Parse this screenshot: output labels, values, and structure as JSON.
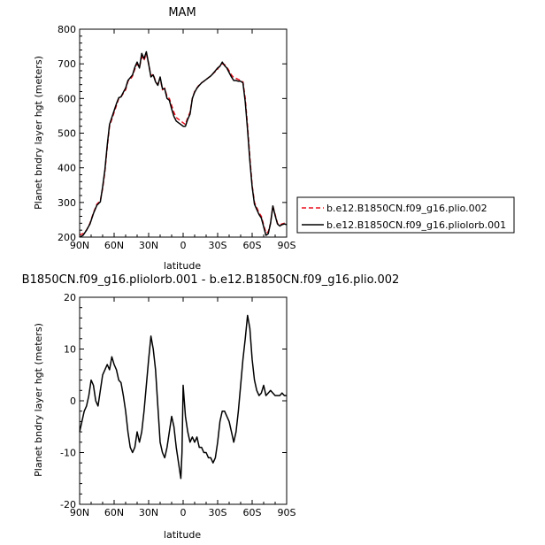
{
  "chart_data": [
    {
      "type": "line",
      "title": "MAM",
      "xlabel": "latitude",
      "ylabel": "Planet bndry layer hgt (meters)",
      "xlim": [
        90,
        -90
      ],
      "ylim": [
        200,
        800
      ],
      "x_ticks": [
        "90N",
        "60N",
        "30N",
        "0",
        "30S",
        "60S",
        "90S"
      ],
      "y_ticks": [
        "200",
        "300",
        "400",
        "500",
        "600",
        "700",
        "800"
      ],
      "legend_position": "right",
      "series": [
        {
          "name": "b.e12.B1850CN.f09_g16.plio.002",
          "color": "#e8101e",
          "dash": "dashed",
          "x": [
            90,
            87,
            84,
            81,
            78,
            75,
            72,
            70,
            68,
            66,
            64,
            62,
            60,
            58,
            56,
            54,
            52,
            50,
            48,
            46,
            44,
            42,
            40,
            38,
            36,
            34,
            32,
            30,
            28,
            26,
            24,
            22,
            20,
            18,
            16,
            14,
            12,
            10,
            8,
            6,
            4,
            2,
            0,
            -2,
            -4,
            -6,
            -8,
            -10,
            -12,
            -14,
            -16,
            -18,
            -20,
            -22,
            -24,
            -26,
            -28,
            -30,
            -32,
            -34,
            -36,
            -38,
            -40,
            -42,
            -44,
            -46,
            -48,
            -50,
            -52,
            -54,
            -56,
            -58,
            -60,
            -62,
            -64,
            -66,
            -68,
            -70,
            -72,
            -74,
            -76,
            -78,
            -80,
            -82,
            -84,
            -86,
            -88,
            -90
          ],
          "values": [
            206,
            210,
            220,
            240,
            270,
            295,
            305,
            340,
            390,
            460,
            520,
            540,
            560,
            580,
            600,
            605,
            615,
            625,
            650,
            655,
            665,
            685,
            700,
            690,
            720,
            710,
            730,
            700,
            665,
            670,
            650,
            640,
            660,
            625,
            630,
            605,
            600,
            580,
            560,
            545,
            540,
            535,
            530,
            525,
            545,
            560,
            600,
            620,
            630,
            640,
            645,
            650,
            655,
            660,
            665,
            672,
            678,
            685,
            695,
            700,
            698,
            690,
            680,
            668,
            660,
            658,
            655,
            652,
            648,
            600,
            520,
            430,
            350,
            300,
            285,
            270,
            260,
            235,
            212,
            215,
            240,
            290,
            265,
            240,
            235,
            238,
            240,
            238
          ]
        },
        {
          "name": "b.e12.B1850CN.f09_g16.pliolorb.001",
          "color": "#000000",
          "dash": "solid",
          "x": [
            90,
            87,
            84,
            81,
            78,
            75,
            72,
            70,
            68,
            66,
            64,
            62,
            60,
            58,
            56,
            54,
            52,
            50,
            48,
            46,
            44,
            42,
            40,
            38,
            36,
            34,
            32,
            30,
            28,
            26,
            24,
            22,
            20,
            18,
            16,
            14,
            12,
            10,
            8,
            6,
            4,
            2,
            0,
            -2,
            -4,
            -6,
            -8,
            -10,
            -12,
            -14,
            -16,
            -18,
            -20,
            -22,
            -24,
            -26,
            -28,
            -30,
            -32,
            -34,
            -36,
            -38,
            -40,
            -42,
            -44,
            -46,
            -48,
            -50,
            -52,
            -54,
            -56,
            -58,
            -60,
            -62,
            -64,
            -66,
            -68,
            -70,
            -72,
            -74,
            -76,
            -78,
            -80,
            -82,
            -84,
            -86,
            -88,
            -90
          ],
          "values": [
            200,
            205,
            220,
            238,
            268,
            292,
            302,
            345,
            395,
            465,
            525,
            545,
            565,
            585,
            602,
            605,
            618,
            630,
            652,
            660,
            668,
            690,
            705,
            688,
            730,
            715,
            735,
            700,
            662,
            668,
            648,
            638,
            662,
            628,
            628,
            600,
            595,
            570,
            548,
            535,
            530,
            525,
            520,
            520,
            540,
            555,
            600,
            618,
            630,
            638,
            645,
            650,
            655,
            660,
            665,
            672,
            680,
            688,
            693,
            705,
            695,
            688,
            675,
            662,
            652,
            652,
            650,
            650,
            645,
            590,
            510,
            420,
            345,
            295,
            280,
            265,
            255,
            230,
            205,
            210,
            240,
            290,
            262,
            238,
            232,
            236,
            238,
            236
          ]
        }
      ]
    },
    {
      "type": "line",
      "title": "B1850CN.f09_g16.pliolorb.001 - b.e12.B1850CN.f09_g16.plio.002",
      "xlabel": "latitude",
      "ylabel": "Planet bndry layer hgt (meters)",
      "xlim": [
        90,
        -90
      ],
      "ylim": [
        -20,
        20
      ],
      "x_ticks": [
        "90N",
        "60N",
        "30N",
        "0",
        "30S",
        "60S",
        "90S"
      ],
      "y_ticks": [
        "-20",
        "-10",
        "0",
        "10",
        "20"
      ],
      "series": [
        {
          "color": "#000000",
          "dash": "solid",
          "x": [
            90,
            88,
            86,
            84,
            82,
            80,
            78,
            76,
            74,
            72,
            70,
            68,
            66,
            64,
            62,
            60,
            58,
            56,
            54,
            52,
            50,
            48,
            46,
            44,
            42,
            40,
            38,
            36,
            34,
            32,
            30,
            28,
            26,
            24,
            22,
            20,
            18,
            16,
            14,
            12,
            10,
            8,
            6,
            4,
            2,
            1,
            0,
            -1,
            -2,
            -4,
            -6,
            -8,
            -10,
            -12,
            -14,
            -16,
            -18,
            -20,
            -22,
            -24,
            -26,
            -28,
            -30,
            -32,
            -34,
            -36,
            -38,
            -40,
            -42,
            -44,
            -46,
            -48,
            -50,
            -52,
            -54,
            -56,
            -58,
            -60,
            -62,
            -64,
            -66,
            -68,
            -70,
            -72,
            -74,
            -76,
            -78,
            -80,
            -82,
            -84,
            -86,
            -88,
            -90
          ],
          "values": [
            -6,
            -4,
            -2,
            -1,
            1,
            4,
            3,
            0,
            -1,
            2,
            5,
            6,
            7,
            6,
            8.5,
            7,
            6,
            4,
            3.5,
            1,
            -2,
            -6,
            -9,
            -10,
            -9,
            -6,
            -8,
            -6,
            -2,
            3,
            8,
            12.5,
            10,
            6,
            -1,
            -8,
            -10,
            -11,
            -9,
            -6,
            -3,
            -5,
            -9,
            -12,
            -15,
            -10,
            3,
            0,
            -3,
            -6,
            -8,
            -7,
            -8,
            -7,
            -9,
            -9,
            -10,
            -10,
            -11,
            -11,
            -12,
            -11,
            -8,
            -4,
            -2,
            -2,
            -3,
            -4,
            -6,
            -8,
            -6,
            -2,
            3,
            8,
            12,
            16.5,
            14,
            8,
            4,
            2,
            1,
            1.5,
            3,
            1,
            1.5,
            2,
            1.5,
            1,
            1,
            1,
            1.5,
            1,
            1
          ]
        }
      ]
    }
  ],
  "legend": {
    "entries": [
      "b.e12.B1850CN.f09_g16.plio.002",
      "b.e12.B1850CN.f09_g16.pliolorb.001"
    ]
  }
}
